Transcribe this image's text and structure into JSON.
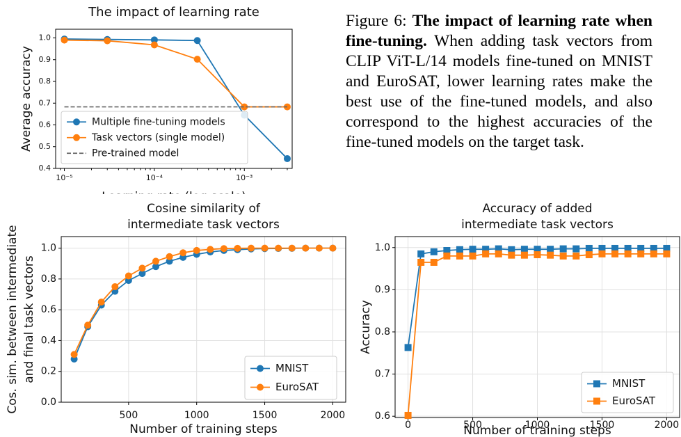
{
  "chart_data": [
    {
      "type": "line",
      "title": [
        "The impact of learning rate"
      ],
      "xlabel": "Learning rate (log scale)",
      "ylabel": [
        "Average accuracy"
      ],
      "xscale": "log",
      "x": [
        1e-05,
        3e-05,
        0.0001,
        0.0003,
        0.001,
        0.003
      ],
      "xlim": [
        8e-06,
        0.0034
      ],
      "xticks": [
        {
          "value": 1e-05,
          "label": "10⁻⁵"
        },
        {
          "value": 0.0001,
          "label": "10⁻⁴"
        },
        {
          "value": 0.001,
          "label": "10⁻³"
        }
      ],
      "ylim": [
        0.4,
        1.04
      ],
      "yticks": [
        0.4,
        0.5,
        0.6,
        0.7,
        0.8,
        0.9,
        {
          "value": 1.0,
          "label": "1.0"
        }
      ],
      "grid": false,
      "legend": "lower left",
      "series": [
        {
          "name": "Multiple fine-tuning models",
          "color": "#1f77b4",
          "marker": "o",
          "linestyle": "solid",
          "values": [
            0.995,
            0.993,
            0.991,
            0.988,
            0.645,
            0.445
          ]
        },
        {
          "name": "Task vectors (single model)",
          "color": "#ff7f0e",
          "marker": "o",
          "linestyle": "solid",
          "values": [
            0.99,
            0.987,
            0.968,
            0.902,
            0.683,
            0.683
          ]
        },
        {
          "name": "Pre-trained model",
          "color": "#666666",
          "marker": "none",
          "linestyle": "dashed",
          "values": [
            0.683,
            0.683,
            0.683,
            0.683,
            0.683,
            0.683
          ]
        }
      ]
    },
    {
      "type": "line",
      "title": [
        "Cosine similarity of",
        "intermediate task vectors"
      ],
      "xlabel": "Number of training steps",
      "ylabel": [
        "Cos. sim. between intermediate",
        "and final task vectors"
      ],
      "x": [
        100,
        200,
        300,
        400,
        500,
        600,
        700,
        800,
        900,
        1000,
        1100,
        1200,
        1300,
        1400,
        1500,
        1600,
        1700,
        1800,
        1900,
        2000
      ],
      "xlim": [
        5,
        2095
      ],
      "xticks": [
        500,
        1000,
        1500,
        2000
      ],
      "ylim": [
        0,
        1.075
      ],
      "yticks": [
        {
          "value": 0,
          "label": "0.0"
        },
        0.2,
        0.4,
        0.6,
        0.8,
        {
          "value": 1.0,
          "label": "1.0"
        }
      ],
      "grid": true,
      "legend": "lower right",
      "series": [
        {
          "name": "MNIST",
          "color": "#1f77b4",
          "marker": "o",
          "linestyle": "solid",
          "values": [
            0.28,
            0.49,
            0.63,
            0.72,
            0.79,
            0.835,
            0.88,
            0.915,
            0.94,
            0.96,
            0.975,
            0.985,
            0.99,
            0.995,
            0.997,
            0.998,
            0.999,
            1.0,
            1.0,
            1.0
          ]
        },
        {
          "name": "EuroSAT",
          "color": "#ff7f0e",
          "marker": "o",
          "linestyle": "solid",
          "values": [
            0.31,
            0.5,
            0.65,
            0.75,
            0.82,
            0.87,
            0.915,
            0.945,
            0.97,
            0.985,
            0.992,
            0.997,
            0.999,
            1.0,
            1.0,
            1.0,
            1.0,
            1.0,
            1.0,
            1.0
          ]
        }
      ]
    },
    {
      "type": "line",
      "title": [
        "Accuracy of added",
        "intermediate task vectors"
      ],
      "xlabel": "Number of training steps",
      "ylabel": [
        "Accuracy"
      ],
      "x": [
        0,
        100,
        200,
        300,
        400,
        500,
        600,
        700,
        800,
        900,
        1000,
        1100,
        1200,
        1300,
        1400,
        1500,
        1600,
        1700,
        1800,
        1900,
        2000
      ],
      "xlim": [
        -100,
        2100
      ],
      "xticks": [
        0,
        500,
        1000,
        1500,
        2000
      ],
      "ylim": [
        0.597,
        1.026
      ],
      "yticks": [
        0.6,
        0.7,
        0.8,
        0.9,
        {
          "value": 1.0,
          "label": "1.0"
        }
      ],
      "grid": true,
      "legend": "lower right",
      "series": [
        {
          "name": "MNIST",
          "color": "#1f77b4",
          "marker": "s",
          "linestyle": "solid",
          "values": [
            0.763,
            0.985,
            0.99,
            0.993,
            0.995,
            0.996,
            0.996,
            0.997,
            0.995,
            0.996,
            0.996,
            0.996,
            0.997,
            0.997,
            0.998,
            0.998,
            0.998,
            0.998,
            0.998,
            0.998,
            0.998
          ]
        },
        {
          "name": "EuroSAT",
          "color": "#ff7f0e",
          "marker": "s",
          "linestyle": "solid",
          "values": [
            0.602,
            0.965,
            0.965,
            0.98,
            0.98,
            0.98,
            0.985,
            0.985,
            0.982,
            0.982,
            0.983,
            0.982,
            0.98,
            0.98,
            0.983,
            0.985,
            0.985,
            0.985,
            0.985,
            0.985,
            0.985
          ]
        }
      ]
    }
  ],
  "caption": {
    "label": "Figure 6:",
    "bold": "The impact of learning rate when fine-tuning.",
    "text": "When adding task vectors from CLIP ViT-L/14 models fine-tuned on MNIST and EuroSAT, lower learning rates make the best use of the fine-tuned models, and also correspond to the highest accuracies of the fine-tuned models on the target task."
  }
}
